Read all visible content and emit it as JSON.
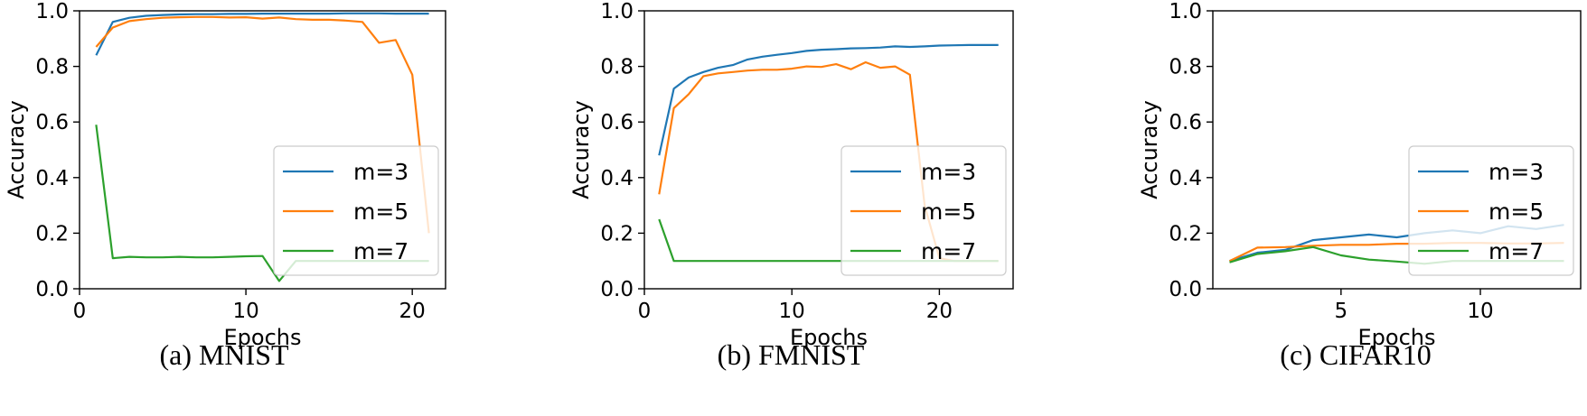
{
  "chart_data": [
    {
      "type": "line",
      "caption": "(a) MNIST",
      "xlabel": "Epochs",
      "ylabel": "Accuracy",
      "xlim": [
        0,
        22
      ],
      "ylim": [
        0.0,
        1.0
      ],
      "xticks": [
        0,
        10,
        20
      ],
      "yticks": [
        0.0,
        0.2,
        0.4,
        0.6,
        0.8,
        1.0
      ],
      "legend_position": "center-right",
      "series": [
        {
          "name": "m=3",
          "color": "#1f77b4",
          "x": [
            1,
            2,
            3,
            4,
            5,
            6,
            7,
            8,
            9,
            10,
            11,
            12,
            13,
            14,
            15,
            16,
            17,
            18,
            19,
            20,
            21
          ],
          "y": [
            0.84,
            0.96,
            0.975,
            0.982,
            0.985,
            0.987,
            0.988,
            0.988,
            0.989,
            0.989,
            0.99,
            0.99,
            0.99,
            0.99,
            0.99,
            0.991,
            0.991,
            0.991,
            0.99,
            0.99,
            0.99
          ]
        },
        {
          "name": "m=5",
          "color": "#ff7f0e",
          "x": [
            1,
            2,
            3,
            4,
            5,
            6,
            7,
            8,
            9,
            10,
            11,
            12,
            13,
            14,
            15,
            16,
            17,
            18,
            19,
            20,
            21
          ],
          "y": [
            0.87,
            0.94,
            0.963,
            0.97,
            0.975,
            0.977,
            0.978,
            0.978,
            0.976,
            0.977,
            0.972,
            0.976,
            0.97,
            0.968,
            0.968,
            0.965,
            0.96,
            0.885,
            0.895,
            0.77,
            0.2
          ]
        },
        {
          "name": "m=7",
          "color": "#2ca02c",
          "x": [
            1,
            2,
            3,
            4,
            5,
            6,
            7,
            8,
            9,
            10,
            11,
            12,
            13,
            14,
            15,
            16,
            17,
            18,
            19,
            20,
            21
          ],
          "y": [
            0.59,
            0.11,
            0.115,
            0.113,
            0.113,
            0.115,
            0.113,
            0.113,
            0.115,
            0.117,
            0.118,
            0.028,
            0.1,
            0.1,
            0.1,
            0.1,
            0.1,
            0.1,
            0.1,
            0.1,
            0.1
          ]
        }
      ]
    },
    {
      "type": "line",
      "caption": "(b) FMNIST",
      "xlabel": "Epochs",
      "ylabel": "Accuracy",
      "xlim": [
        0,
        25
      ],
      "ylim": [
        0.0,
        1.0
      ],
      "xticks": [
        0,
        10,
        20
      ],
      "yticks": [
        0.0,
        0.2,
        0.4,
        0.6,
        0.8,
        1.0
      ],
      "legend_position": "center-right",
      "series": [
        {
          "name": "m=3",
          "color": "#1f77b4",
          "x": [
            1,
            2,
            3,
            4,
            5,
            6,
            7,
            8,
            9,
            10,
            11,
            12,
            13,
            14,
            15,
            16,
            17,
            18,
            19,
            20,
            21,
            22,
            23,
            24
          ],
          "y": [
            0.48,
            0.72,
            0.76,
            0.78,
            0.795,
            0.805,
            0.825,
            0.835,
            0.842,
            0.848,
            0.856,
            0.86,
            0.862,
            0.865,
            0.866,
            0.868,
            0.872,
            0.87,
            0.872,
            0.875,
            0.876,
            0.877,
            0.877,
            0.877
          ]
        },
        {
          "name": "m=5",
          "color": "#ff7f0e",
          "x": [
            1,
            2,
            3,
            4,
            5,
            6,
            7,
            8,
            9,
            10,
            11,
            12,
            13,
            14,
            15,
            16,
            17,
            18,
            19,
            20,
            21,
            22,
            23,
            24
          ],
          "y": [
            0.34,
            0.65,
            0.7,
            0.765,
            0.775,
            0.78,
            0.785,
            0.788,
            0.788,
            0.792,
            0.8,
            0.798,
            0.808,
            0.79,
            0.815,
            0.795,
            0.8,
            0.77,
            0.3,
            0.11,
            0.1,
            0.1,
            0.1,
            0.1
          ]
        },
        {
          "name": "m=7",
          "color": "#2ca02c",
          "x": [
            1,
            2,
            3,
            4,
            5,
            6,
            7,
            8,
            9,
            10,
            11,
            12,
            13,
            14,
            15,
            16,
            17,
            18,
            19,
            20,
            21,
            22,
            23,
            24
          ],
          "y": [
            0.25,
            0.1,
            0.1,
            0.1,
            0.1,
            0.1,
            0.1,
            0.1,
            0.1,
            0.1,
            0.1,
            0.1,
            0.1,
            0.1,
            0.1,
            0.1,
            0.1,
            0.1,
            0.1,
            0.1,
            0.1,
            0.1,
            0.1,
            0.1
          ]
        }
      ]
    },
    {
      "type": "line",
      "caption": "(c) CIFAR10",
      "xlabel": "Epochs",
      "ylabel": "Accuracy",
      "xlim": [
        0.4,
        13.6
      ],
      "ylim": [
        0.0,
        1.0
      ],
      "xticks": [
        5,
        10
      ],
      "yticks": [
        0.0,
        0.2,
        0.4,
        0.6,
        0.8,
        1.0
      ],
      "legend_position": "center-right",
      "series": [
        {
          "name": "m=3",
          "color": "#1f77b4",
          "x": [
            1,
            2,
            3,
            4,
            5,
            6,
            7,
            8,
            9,
            10,
            11,
            12,
            13
          ],
          "y": [
            0.1,
            0.13,
            0.14,
            0.175,
            0.185,
            0.195,
            0.185,
            0.2,
            0.21,
            0.2,
            0.225,
            0.215,
            0.23
          ]
        },
        {
          "name": "m=5",
          "color": "#ff7f0e",
          "x": [
            1,
            2,
            3,
            4,
            5,
            6,
            7,
            8,
            9,
            10,
            11,
            12,
            13
          ],
          "y": [
            0.1,
            0.148,
            0.15,
            0.155,
            0.158,
            0.158,
            0.162,
            0.162,
            0.165,
            0.165,
            0.163,
            0.163,
            0.165
          ]
        },
        {
          "name": "m=7",
          "color": "#2ca02c",
          "x": [
            1,
            2,
            3,
            4,
            5,
            6,
            7,
            8,
            9,
            10,
            11,
            12,
            13
          ],
          "y": [
            0.095,
            0.125,
            0.135,
            0.15,
            0.12,
            0.105,
            0.098,
            0.09,
            0.1,
            0.1,
            0.1,
            0.1,
            0.1
          ]
        }
      ]
    }
  ]
}
